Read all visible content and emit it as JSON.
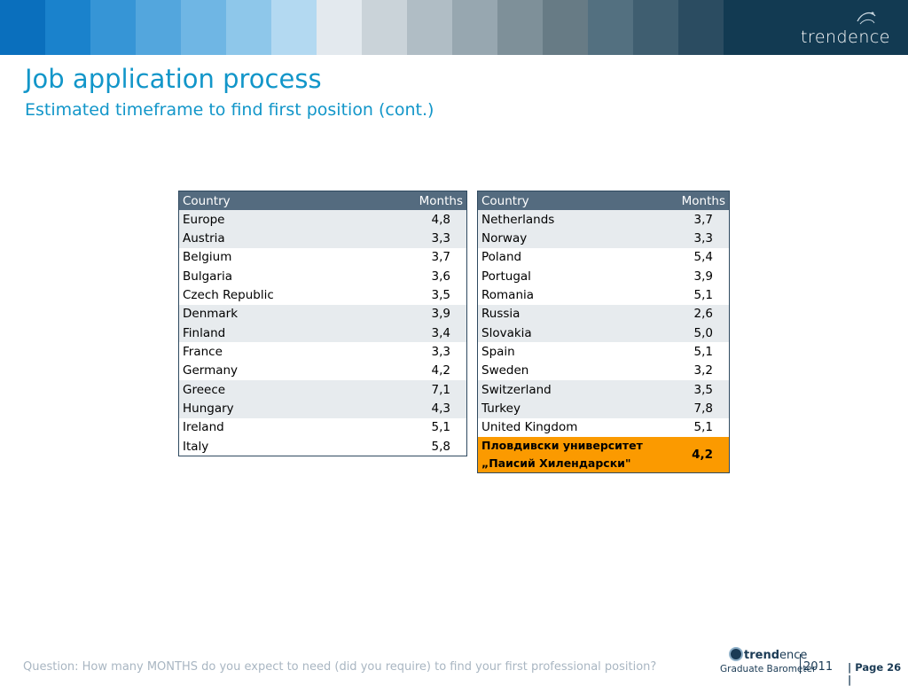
{
  "header": {
    "band_colors": [
      "#0a6fbd",
      "#1a82cc",
      "#3695d6",
      "#53a6dd",
      "#6fb6e4",
      "#8ec7ea",
      "#b3d9f1",
      "#e3e9ee",
      "#cad3d9",
      "#b0bdc5",
      "#97a7b0",
      "#7e9099",
      "#677b85",
      "#537080",
      "#3f5e70",
      "#2b4c61",
      "#123a52"
    ],
    "logo_text_light_1": "trend",
    "logo_text_light_2": "ence"
  },
  "page": {
    "title": "Job application process",
    "subtitle": "Estimated timeframe to find first position (cont.)"
  },
  "left_table": {
    "headers": [
      "Country",
      "Months"
    ],
    "rows": [
      [
        "Europe",
        "4,8"
      ],
      [
        "Austria",
        "3,3"
      ],
      [
        "Belgium",
        "3,7"
      ],
      [
        "Bulgaria",
        "3,6"
      ],
      [
        "Czech Republic",
        "3,5"
      ],
      [
        "Denmark",
        "3,9"
      ],
      [
        "Finland",
        "3,4"
      ],
      [
        "France",
        "3,3"
      ],
      [
        "Germany",
        "4,2"
      ],
      [
        "Greece",
        "7,1"
      ],
      [
        "Hungary",
        "4,3"
      ],
      [
        "Ireland",
        "5,1"
      ],
      [
        "Italy",
        "5,8"
      ]
    ]
  },
  "right_table": {
    "headers": [
      "Country",
      "Months"
    ],
    "rows": [
      [
        "Netherlands",
        "3,7"
      ],
      [
        "Norway",
        "3,3"
      ],
      [
        "Poland",
        "5,4"
      ],
      [
        "Portugal",
        "3,9"
      ],
      [
        "Romania",
        "5,1"
      ],
      [
        "Russia",
        "2,6"
      ],
      [
        "Slovakia",
        "5,0"
      ],
      [
        "Spain",
        "5,1"
      ],
      [
        "Sweden",
        "3,2"
      ],
      [
        "Switzerland",
        "3,5"
      ],
      [
        "Turkey",
        "7,8"
      ],
      [
        "United Kingdom",
        "5,1"
      ]
    ],
    "highlight": {
      "line1": "Пловдивски университет",
      "line2": "„Паисий Хилендарски\"",
      "value": "4,2",
      "color": "#fb9a00"
    }
  },
  "footer": {
    "question": "Question: How many MONTHS do you expect to need (did you require) to find your first professional position?",
    "logo_bold": "trend",
    "logo_light": "ence",
    "logo_sub": "Graduate Barometer",
    "year": "2011",
    "page_label": "| Page 26 |"
  }
}
